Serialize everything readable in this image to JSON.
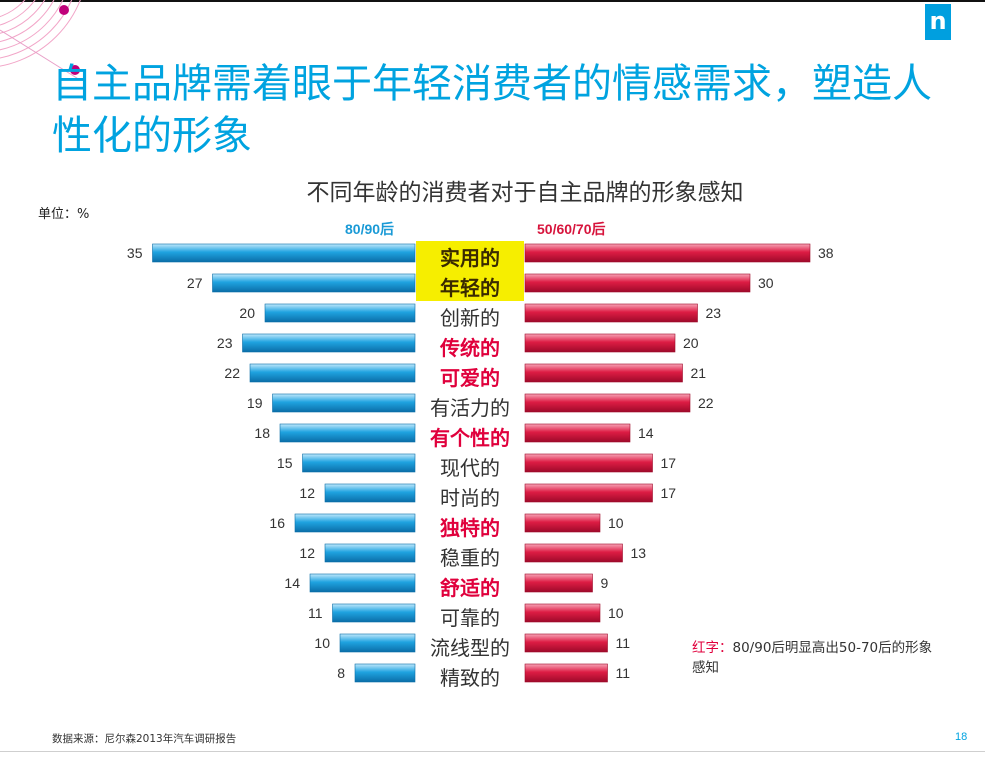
{
  "slide": {
    "title": "自主品牌需着眼于年轻消费者的情感需求，塑造人性化的形象",
    "unit": "单位：%",
    "note_prefix": "红字：",
    "note_text": "80/90后明显高出50-70后的形象感知",
    "source": "数据来源：尼尔森2013年汽车调研报告",
    "page_number": "18",
    "logo": "n"
  },
  "colors": {
    "title": "#00a3e0",
    "young_bar": "#1a9ad6",
    "old_bar": "#d7143c",
    "highlight_bg": "#f6ee00",
    "red_text": "#e0003c"
  },
  "chart_data": {
    "type": "bar",
    "orientation": "horizontal-butterfly",
    "title": "不同年龄的消费者对于自主品牌的形象感知",
    "categories": [
      "实用的",
      "年轻的",
      "创新的",
      "传统的",
      "可爱的",
      "有活力的",
      "有个性的",
      "现代的",
      "时尚的",
      "独特的",
      "稳重的",
      "舒适的",
      "可靠的",
      "流线型的",
      "精致的"
    ],
    "category_style": [
      "highlight",
      "highlight",
      "normal",
      "red",
      "red",
      "normal",
      "red",
      "normal",
      "normal",
      "red",
      "normal",
      "red",
      "normal",
      "normal",
      "normal"
    ],
    "series": [
      {
        "name": "80/90后",
        "side": "left",
        "values": [
          35,
          27,
          20,
          23,
          22,
          19,
          18,
          15,
          12,
          16,
          12,
          14,
          11,
          10,
          8
        ]
      },
      {
        "name": "50/60/70后",
        "side": "right",
        "values": [
          38,
          30,
          23,
          20,
          21,
          22,
          14,
          17,
          17,
          10,
          13,
          9,
          10,
          11,
          11
        ]
      }
    ]
  }
}
